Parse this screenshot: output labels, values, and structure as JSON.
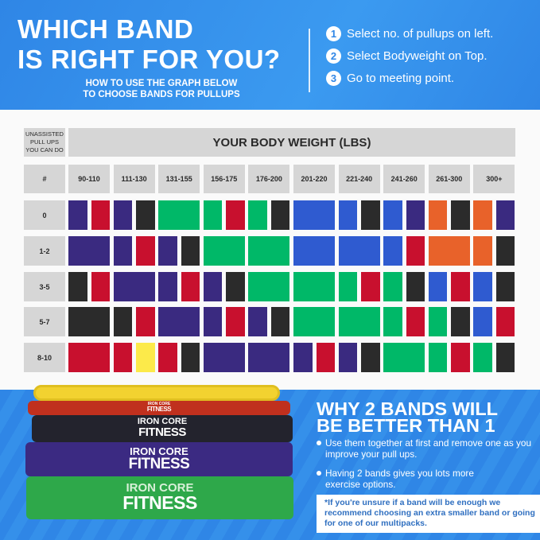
{
  "header": {
    "title_line1": "WHICH BAND",
    "title_line2": "IS RIGHT FOR YOU?",
    "subtitle_line1": "HOW TO USE THE GRAPH BELOW",
    "subtitle_line2": "TO CHOOSE BANDS FOR PULLUPS",
    "steps": [
      {
        "num": "1",
        "text": "Select no. of pullups on left."
      },
      {
        "num": "2",
        "text": "Select Bodyweight on Top."
      },
      {
        "num": "3",
        "text": "Go to meeting point."
      }
    ]
  },
  "grid": {
    "corner_label": "UNASSISTED PULL UPS YOU CAN DO",
    "weight_title": "YOUR BODY WEIGHT (LBS)",
    "hash_label": "#",
    "weights": [
      "90-110",
      "111-130",
      "131-155",
      "156-175",
      "176-200",
      "201-220",
      "221-240",
      "241-260",
      "261-300",
      "300+"
    ],
    "colors": {
      "P": "#3a2a80",
      "R": "#c8102e",
      "K": "#2b2b2b",
      "G": "#00b868",
      "B": "#2f5bd0",
      "O": "#e8622a",
      "Y": "#fcea4a"
    },
    "rows": [
      {
        "label": "0",
        "bands": [
          [
            "P",
            "R"
          ],
          [
            "P",
            "K"
          ],
          [
            "G"
          ],
          [
            "G",
            "R"
          ],
          [
            "G",
            "K"
          ],
          [
            "B"
          ],
          [
            "B",
            "K"
          ],
          [
            "B",
            "P"
          ],
          [
            "O",
            "K"
          ],
          [
            "O",
            "P"
          ]
        ]
      },
      {
        "label": "1-2",
        "bands": [
          [
            "P"
          ],
          [
            "P",
            "R"
          ],
          [
            "P",
            "K"
          ],
          [
            "G"
          ],
          [
            "G"
          ],
          [
            "B"
          ],
          [
            "B"
          ],
          [
            "B",
            "R"
          ],
          [
            "O"
          ],
          [
            "O",
            "K"
          ]
        ]
      },
      {
        "label": "3-5",
        "bands": [
          [
            "K",
            "R"
          ],
          [
            "P"
          ],
          [
            "P",
            "R"
          ],
          [
            "P",
            "K"
          ],
          [
            "G"
          ],
          [
            "G"
          ],
          [
            "G",
            "R"
          ],
          [
            "G",
            "K"
          ],
          [
            "B",
            "R"
          ],
          [
            "B",
            "K"
          ]
        ]
      },
      {
        "label": "5-7",
        "bands": [
          [
            "K"
          ],
          [
            "K",
            "R"
          ],
          [
            "P"
          ],
          [
            "P",
            "R"
          ],
          [
            "P",
            "K"
          ],
          [
            "G"
          ],
          [
            "G"
          ],
          [
            "G",
            "R"
          ],
          [
            "G",
            "K"
          ],
          [
            "B",
            "R"
          ]
        ]
      },
      {
        "label": "8-10",
        "bands": [
          [
            "R"
          ],
          [
            "R",
            "Y"
          ],
          [
            "R",
            "K"
          ],
          [
            "P"
          ],
          [
            "P"
          ],
          [
            "P",
            "R"
          ],
          [
            "P",
            "K"
          ],
          [
            "G"
          ],
          [
            "G",
            "R"
          ],
          [
            "G",
            "K"
          ]
        ]
      }
    ]
  },
  "product": {
    "brand_line1": "IRON CORE",
    "brand_line2": "FITNESS"
  },
  "why": {
    "title_line1": "WHY 2 BANDS WILL",
    "title_line2": "BE BETTER THAN 1",
    "bullets": [
      "Use them together at first and remove one as you improve your pull ups.",
      "Having 2 bands gives you lots more exercise options."
    ],
    "note": "*If you're unsure if a band will be enough we recommend choosing an extra smaller band or going for one of our multipacks."
  }
}
